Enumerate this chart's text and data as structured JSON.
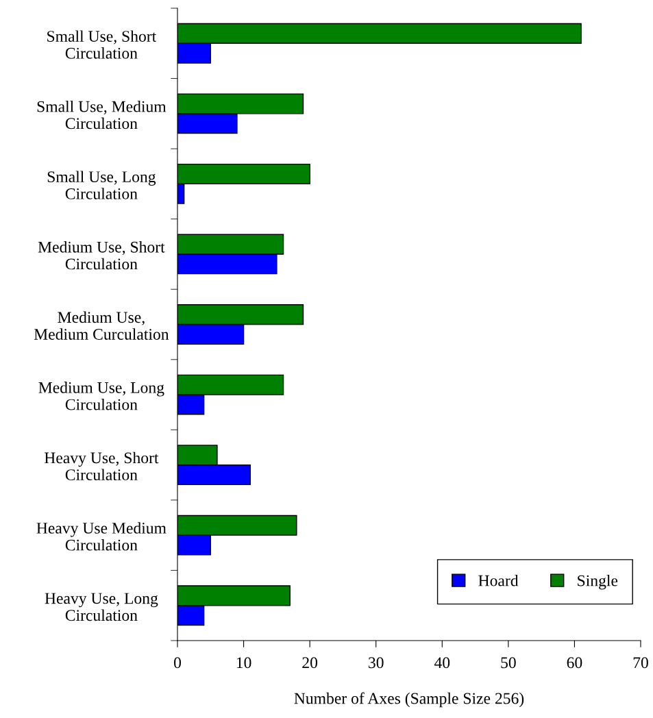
{
  "chart_data": {
    "type": "bar",
    "orientation": "horizontal",
    "xlabel": "Number of Axes (Sample Size 256)",
    "categories": [
      "Small Use, Short\nCirculation",
      "Small Use, Medium\nCirculation",
      "Small Use, Long\nCirculation",
      "Medium Use, Short\nCirculation",
      "Medium Use,\nMedium Curculation",
      "Medium Use, Long\nCirculation",
      "Heavy Use, Short\nCirculation",
      "Heavy Use Medium\nCirculation",
      "Heavy Use, Long\nCirculation"
    ],
    "series": [
      {
        "name": "Hoard",
        "color": "#0000ff",
        "values": [
          5,
          9,
          1,
          15,
          10,
          4,
          11,
          5,
          4
        ]
      },
      {
        "name": "Single",
        "color": "#008000",
        "values": [
          61,
          19,
          20,
          16,
          19,
          16,
          6,
          18,
          17
        ]
      }
    ],
    "xlim": [
      0,
      70
    ],
    "xticks": [
      0,
      10,
      20,
      30,
      40,
      50,
      60,
      70
    ],
    "grid": false,
    "legend": "bottom right"
  }
}
